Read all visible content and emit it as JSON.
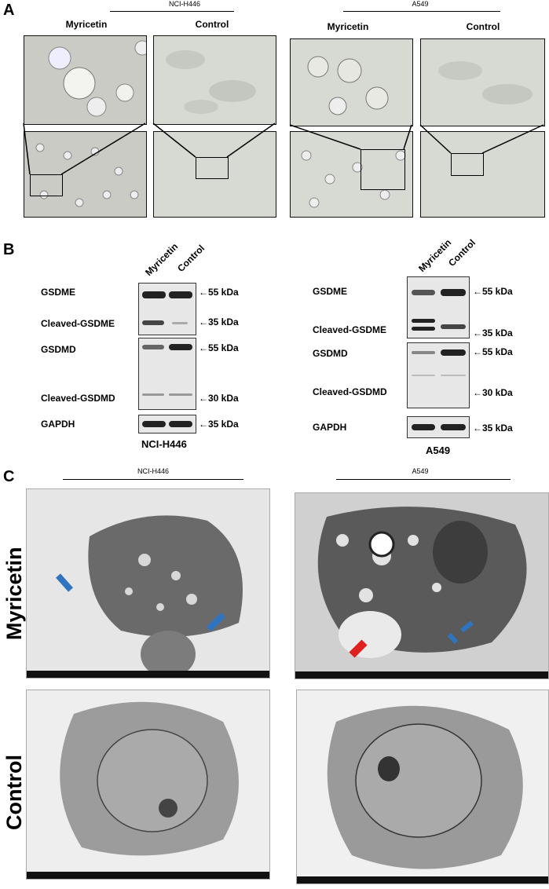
{
  "panel_a": {
    "label": "A",
    "left_group": "NCI-H446",
    "right_group": "A549",
    "left_conditions": [
      "Myricetin",
      "Control"
    ],
    "right_conditions": [
      "Myricetin",
      "Control"
    ]
  },
  "panel_b": {
    "label": "B",
    "left": {
      "cell_line": "NCI-H446",
      "lanes": [
        "Myricetin",
        "Control"
      ],
      "rows": [
        "GSDME",
        "Cleaved-GSDME",
        "GSDMD",
        "Cleaved-GSDMD",
        "GAPDH"
      ],
      "markers": [
        "55 kDa",
        "35 kDa",
        "55 kDa",
        "30 kDa",
        "35 kDa"
      ]
    },
    "right": {
      "cell_line": "A549",
      "lanes": [
        "Myricetin",
        "Control"
      ],
      "rows": [
        "GSDME",
        "Cleaved-GSDME",
        "GSDMD",
        "Cleaved-GSDMD",
        "GAPDH"
      ],
      "markers": [
        "55 kDa",
        "35 kDa",
        "55 kDa",
        "30 kDa",
        "35 kDa"
      ]
    }
  },
  "panel_c": {
    "label": "C",
    "left_group": "NCI-H446",
    "right_group": "A549",
    "row_labels": [
      "Myricetin",
      "Control"
    ]
  },
  "colors": {
    "blue_arrow": "#2f74c0",
    "red_arrow": "#e02020"
  }
}
